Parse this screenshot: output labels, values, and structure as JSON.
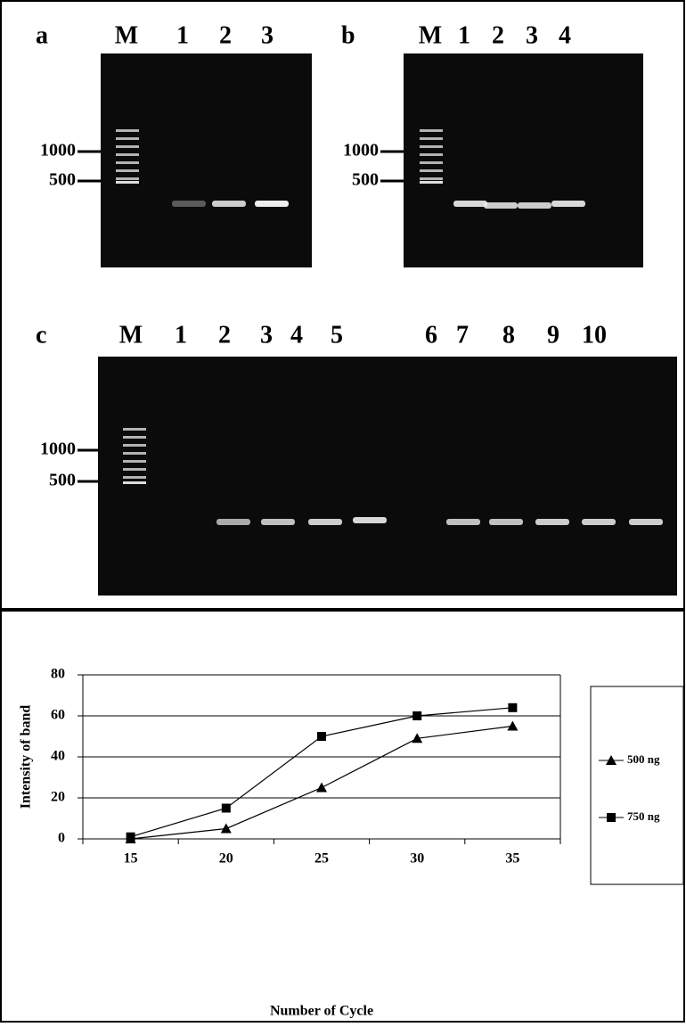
{
  "gels": [
    {
      "label": "a",
      "lanes": [
        "M",
        "1",
        "2",
        "3"
      ],
      "markers": [
        "1000",
        "500"
      ]
    },
    {
      "label": "b",
      "lanes": [
        "M",
        "1",
        "2",
        "3",
        "4"
      ],
      "markers": [
        "1000",
        "500"
      ]
    },
    {
      "label": "c",
      "lanes": [
        "M",
        "1",
        "2",
        "3",
        "4",
        "5",
        "6",
        "7",
        "8",
        "9",
        "10"
      ],
      "markers": [
        "1000",
        "500"
      ]
    }
  ],
  "chart_data": {
    "type": "line",
    "categories": [
      "15",
      "20",
      "25",
      "30",
      "35"
    ],
    "series": [
      {
        "name": "500 ng",
        "color": "#000000",
        "marker": "triangle",
        "values": [
          0,
          5,
          25,
          49,
          55
        ]
      },
      {
        "name": "750 ng",
        "color": "#000000",
        "marker": "square",
        "values": [
          1,
          15,
          50,
          60,
          64
        ]
      }
    ],
    "ylim": [
      0,
      80
    ],
    "yticks": [
      0,
      20,
      40,
      60,
      80
    ],
    "grid": true,
    "xlabel": "Number of Cycle",
    "ylabel": "Intensity of band",
    "legend": "right"
  }
}
